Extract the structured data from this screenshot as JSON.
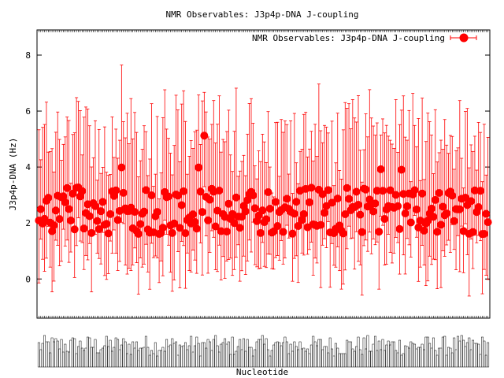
{
  "chart_data": {
    "type": "scatter",
    "title": "NMR Observables: J3p4p-DNA J-coupling",
    "xlabel": "Nucleotide",
    "ylabel": "J3p4p-DNA (Hz)",
    "ylim": [
      -1.4,
      8.9
    ],
    "yticks": [
      0,
      2,
      4,
      6,
      8
    ],
    "grid": false,
    "legend_position": "top-right",
    "series": [
      {
        "name": "NMR Observables: J3p4p-DNA J-coupling",
        "color": "#ff0000",
        "marker": "circle",
        "error_bars": true
      }
    ],
    "n_points": 240,
    "notes_visible": "x tick labels are overlapping and unreadable"
  },
  "colors": {
    "series": "#ff0000",
    "axes": "#000000",
    "background": "#ffffff"
  }
}
